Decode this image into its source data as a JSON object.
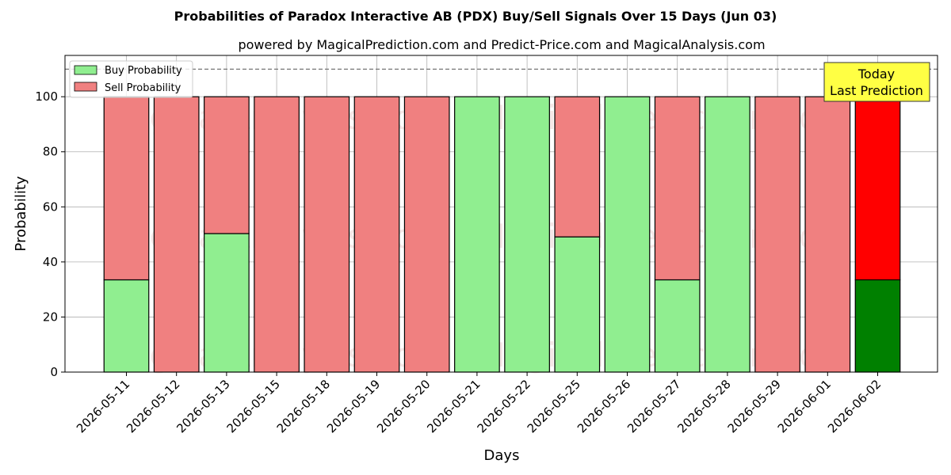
{
  "chart_data": {
    "type": "bar",
    "stacked": true,
    "title": "Probabilities of Paradox Interactive AB (PDX) Buy/Sell Signals Over 15 Days (Jun 03)",
    "subtitle": "powered by MagicalPrediction.com and Predict-Price.com and MagicalAnalysis.com",
    "xlabel": "Days",
    "ylabel": "Probability",
    "ylim": [
      0,
      115
    ],
    "yticks": [
      0,
      20,
      40,
      60,
      80,
      100
    ],
    "reference_line": 110,
    "grid": true,
    "legend_placement": "top-left",
    "categories": [
      "2026-05-11",
      "2026-05-12",
      "2026-05-13",
      "2026-05-15",
      "2026-05-18",
      "2026-05-19",
      "2026-05-20",
      "2026-05-21",
      "2026-05-22",
      "2026-05-25",
      "2026-05-26",
      "2026-05-27",
      "2026-05-28",
      "2026-05-29",
      "2026-06-01",
      "2026-06-02"
    ],
    "series": [
      {
        "name": "Buy Probability",
        "color": "#90ee90",
        "values": [
          33.5,
          0,
          50.3,
          0,
          0,
          0,
          0,
          100,
          100,
          49.1,
          100,
          33.5,
          100,
          0,
          0,
          33.5
        ]
      },
      {
        "name": "Sell Probability",
        "color": "#f08080",
        "values": [
          66.5,
          100,
          49.7,
          100,
          100,
          100,
          100,
          0,
          0,
          50.9,
          0,
          66.5,
          0,
          100,
          100,
          66.5
        ]
      }
    ],
    "highlight": {
      "index": 15,
      "buy_color": "#008000",
      "sell_color": "#ff0000"
    },
    "annotation": {
      "lines": [
        "Today",
        "Last Prediction"
      ],
      "background": "#ffff44"
    },
    "watermarks": [
      "MagicalAnalysis.com",
      "MagicalPrediction.com"
    ]
  }
}
